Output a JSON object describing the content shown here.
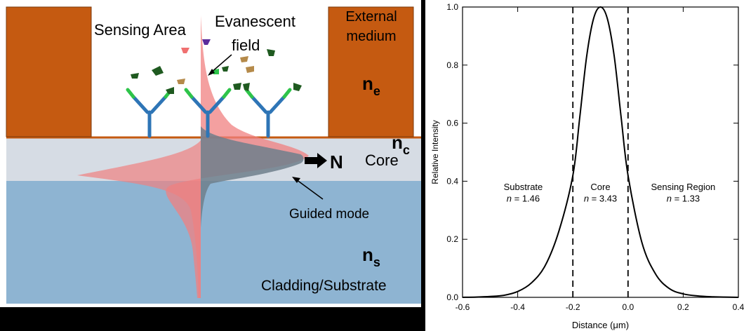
{
  "diagram": {
    "sensing_area": "Sensing Area",
    "evanescent_line1": "Evanescent",
    "evanescent_line2": "field",
    "external_line1": "External",
    "external_line2": "medium",
    "n_e_base": "n",
    "n_e_sub": "e",
    "n_c_base": "n",
    "n_c_sub": "c",
    "core_label": "Core",
    "n_label": "N",
    "guided_mode": "Guided mode",
    "n_s_base": "n",
    "n_s_sub": "s",
    "cladding_label": "Cladding/Substrate",
    "colors": {
      "block": "#C55A11",
      "core": "#D6DCE4",
      "cladding": "#8EB4D2",
      "field": "#F08080",
      "guided": "#6E7F8C",
      "antibody_blue": "#2E75B6",
      "antibody_green": "#2EC44A"
    }
  },
  "chart_data": {
    "type": "line",
    "xlabel": "Distance (μm)",
    "ylabel": "Relative Intensity",
    "xlim": [
      -0.6,
      0.4
    ],
    "ylim": [
      0,
      1.0
    ],
    "x_ticks": [
      "-0.6",
      "-0.4",
      "-0.2",
      "0.0",
      "0.2",
      "0.4"
    ],
    "y_ticks": [
      "0.0",
      "0.2",
      "0.4",
      "0.6",
      "0.8",
      "1.0"
    ],
    "x_tick_values": [
      -0.6,
      -0.4,
      -0.2,
      0.0,
      0.2,
      0.4
    ],
    "y_tick_values": [
      0.0,
      0.2,
      0.4,
      0.6,
      0.8,
      1.0
    ],
    "boundaries": [
      -0.2,
      0.0
    ],
    "regions": [
      {
        "name": "Substrate",
        "n_text": "n = 1.46",
        "x": -0.38
      },
      {
        "name": "Core",
        "n_text": "n = 3.43",
        "x": -0.1
      },
      {
        "name": "Sensing Region",
        "n_text": "n = 1.33",
        "x": 0.2
      }
    ],
    "region_label_y": [
      0.37,
      0.33
    ],
    "x": [
      -0.6,
      -0.55,
      -0.5,
      -0.45,
      -0.4,
      -0.35,
      -0.3,
      -0.25,
      -0.2,
      -0.175,
      -0.15,
      -0.125,
      -0.1,
      -0.075,
      -0.05,
      -0.025,
      0.0,
      0.05,
      0.1,
      0.15,
      0.2,
      0.25,
      0.3,
      0.35,
      0.4
    ],
    "y": [
      0.0,
      0.001,
      0.003,
      0.007,
      0.02,
      0.05,
      0.11,
      0.23,
      0.42,
      0.62,
      0.83,
      0.96,
      1.0,
      0.96,
      0.83,
      0.62,
      0.42,
      0.19,
      0.08,
      0.03,
      0.012,
      0.005,
      0.002,
      0.001,
      0.0
    ]
  }
}
